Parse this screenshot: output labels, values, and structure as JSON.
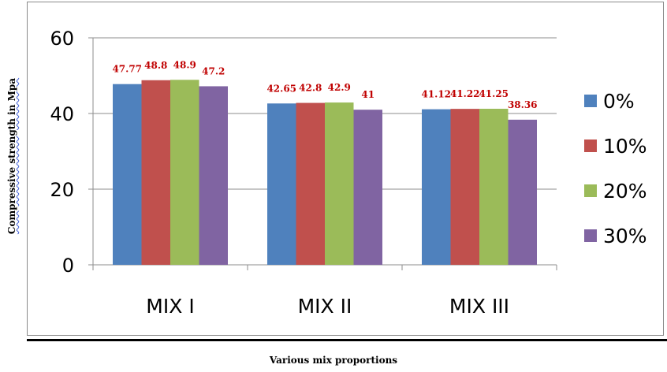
{
  "chart_data": {
    "type": "bar",
    "categories": [
      "MIX I",
      "MIX II",
      "MIX III"
    ],
    "series": [
      {
        "name": "0%",
        "values": [
          47.77,
          42.65,
          41.12
        ],
        "labels": [
          "47.77",
          "42.65",
          "41.12"
        ],
        "color": "#4f81bd"
      },
      {
        "name": "10%",
        "values": [
          48.8,
          42.8,
          41.22
        ],
        "labels": [
          "48.8",
          "42.8",
          "41.22"
        ],
        "color": "#c0504d"
      },
      {
        "name": "20%",
        "values": [
          48.9,
          42.9,
          41.25
        ],
        "labels": [
          "48.9",
          "42.9",
          "41.25"
        ],
        "color": "#9bbb59"
      },
      {
        "name": "30%",
        "values": [
          47.2,
          41,
          38.36
        ],
        "labels": [
          "47.2",
          "41",
          "38.36"
        ],
        "color": "#8064a2"
      }
    ],
    "ylim": [
      0,
      60
    ],
    "yticks": [
      0,
      20,
      40,
      60
    ],
    "grid": true,
    "legend_position": "right",
    "xlabel": "Various mix proportions",
    "ylabel": "Compressive  strength in Mpa",
    "label_color": "#c00000"
  }
}
